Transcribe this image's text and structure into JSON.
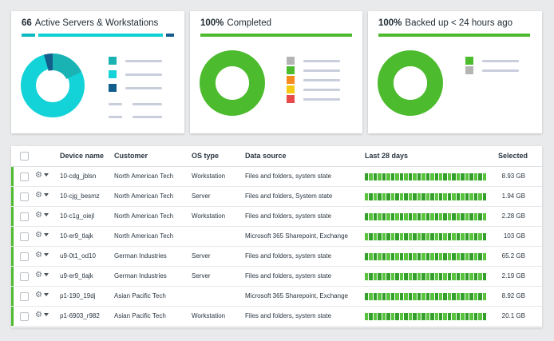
{
  "cards": [
    {
      "count": "66",
      "label": "Active Servers & Workstations",
      "bar_colors": [
        "#0fb9c0",
        "#0fd0d5",
        "#135e8c"
      ],
      "donut_colors": [
        "#13d2d8",
        "#1ab3b3",
        "#135e8c"
      ],
      "donut_fractions": [
        0.84,
        0.12,
        0.04
      ],
      "legend_icons": [
        "teal-swatch",
        "cyan-swatch",
        "navy-swatch"
      ]
    },
    {
      "count": "100%",
      "label": "Completed",
      "bar_color": "#4dbb2e",
      "donut_color": "#4dbb2e",
      "legend_colors": [
        "#b4b4b4",
        "#4dbb2e",
        "#f58a1f",
        "#f6c915",
        "#e84a4a"
      ]
    },
    {
      "count": "100%",
      "label": "Backed up < 24 hours ago",
      "bar_color": "#4dbb2e",
      "donut_color": "#4dbb2e",
      "legend_colors": [
        "#4dbb2e",
        "#b4b4b4"
      ]
    }
  ],
  "table": {
    "headers": [
      "Device name",
      "Customer",
      "OS type",
      "Data source",
      "Last 28 days",
      "Selected"
    ],
    "rows": [
      {
        "device": "10-cdg_jblsn",
        "customer": "North American Tech",
        "os": "Workstation",
        "source": "Files and folders, system state",
        "selected": "8.93 GB"
      },
      {
        "device": "10-cjg_besmz",
        "customer": "North American Tech",
        "os": "Server",
        "source": "Files and folders, System state",
        "selected": "1.94 GB"
      },
      {
        "device": "10-c1g_oiejl",
        "customer": "North American Tech",
        "os": "Workstation",
        "source": "Files and folders, system state",
        "selected": "2.28 GB"
      },
      {
        "device": "10-er9_tlajk",
        "customer": "North American Tech",
        "os": "",
        "source": "Microsoft 365 Sharepoint, Exchange",
        "selected": "103 GB"
      },
      {
        "device": "u9-0t1_od10",
        "customer": "German Industries",
        "os": "Server",
        "source": "Files and folders, system state",
        "selected": "65.2 GB"
      },
      {
        "device": "u9-er9_tlajk",
        "customer": "German Industries",
        "os": "Server",
        "source": "Files and folders, system state",
        "selected": "2.19 GB"
      },
      {
        "device": "p1-190_19dj",
        "customer": "Asian Pacific Tech",
        "os": "",
        "source": "Microsoft 365 Sharepoint, Exchange",
        "selected": "8.92 GB"
      },
      {
        "device": "p1-6903_r982",
        "customer": "Asian Pacific Tech",
        "os": "Workstation",
        "source": "Files and folders, system state",
        "selected": "20.1 GB"
      }
    ],
    "day_colors": [
      "#34a02b",
      "#58c23d"
    ]
  }
}
